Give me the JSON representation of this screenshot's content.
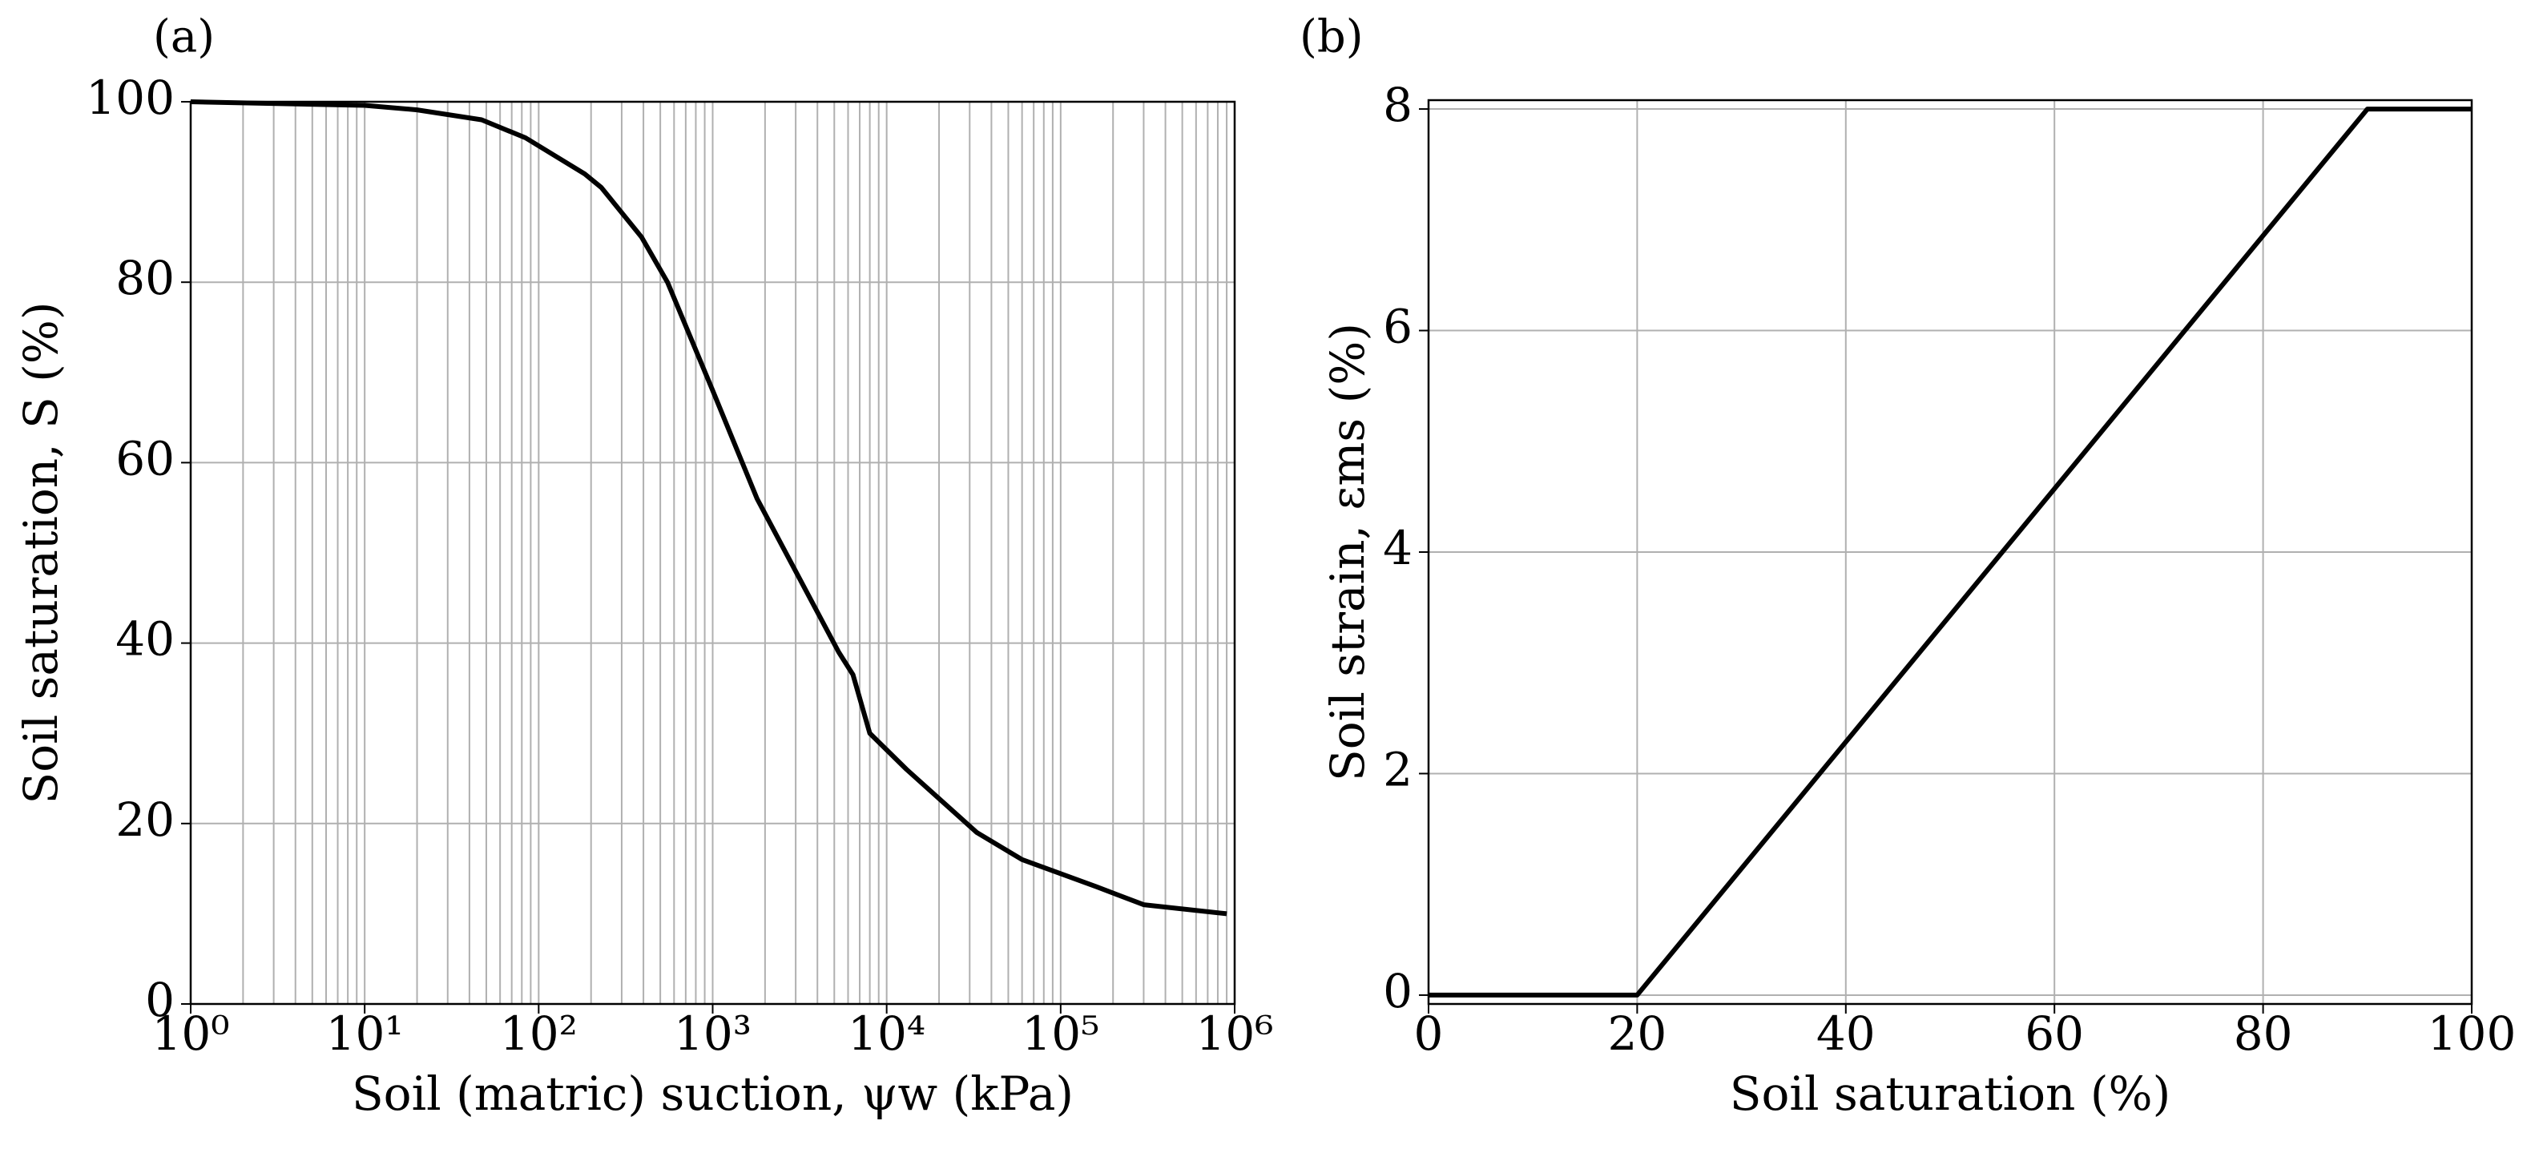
{
  "chart_data": [
    {
      "type": "line",
      "title": "(a)",
      "xlabel": "Soil (matric) suction, ψw (kPa)",
      "ylabel": "Soil saturation, S (%)",
      "log_x": true,
      "grid": true,
      "minor_grid": true,
      "color": "#000000",
      "x": [
        1,
        10,
        20,
        47,
        84,
        184,
        229,
        390,
        550,
        1000,
        1800,
        5300,
        6400,
        8000,
        13000,
        33000,
        60000,
        160000,
        300000,
        900000
      ],
      "values": [
        100,
        99.6,
        99.1,
        98,
        96,
        92,
        90.5,
        85,
        80,
        68,
        56,
        39,
        36.5,
        30,
        26,
        19,
        16,
        13,
        11,
        10
      ],
      "xlim": [
        1,
        1000000
      ],
      "xticks": [
        {
          "value": 1,
          "label": "10⁰"
        },
        {
          "value": 10,
          "label": "10¹"
        },
        {
          "value": 100,
          "label": "10²"
        },
        {
          "value": 1000,
          "label": "10³"
        },
        {
          "value": 10000,
          "label": "10⁴"
        },
        {
          "value": 100000,
          "label": "10⁵"
        },
        {
          "value": 1000000,
          "label": "10⁶"
        }
      ],
      "ylim": [
        0,
        100
      ],
      "yticks": [
        0,
        20,
        40,
        60,
        80,
        100
      ]
    },
    {
      "type": "line",
      "title": "(b)",
      "xlabel": "Soil saturation (%)",
      "ylabel": "Soil strain, εms (%)",
      "log_x": false,
      "grid": true,
      "minor_grid": false,
      "color": "#000000",
      "x": [
        0,
        20,
        90,
        100
      ],
      "values": [
        0,
        0,
        8,
        8
      ],
      "xlim": [
        0,
        100
      ],
      "xticks": [
        0,
        20,
        40,
        60,
        80,
        100
      ],
      "ylim": [
        -0.08,
        8.08
      ],
      "yticks": [
        0,
        2,
        4,
        6,
        8
      ]
    }
  ]
}
